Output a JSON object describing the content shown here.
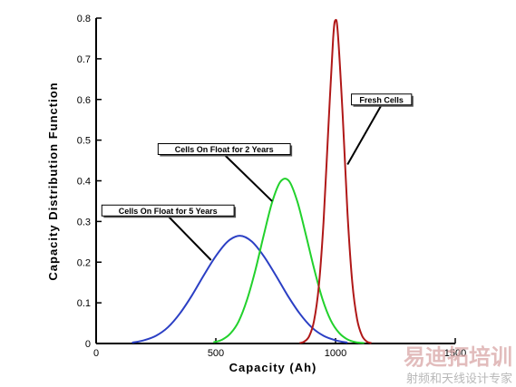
{
  "chart_data": {
    "type": "line",
    "xlabel": "Capacity (Ah)",
    "ylabel": "Capacity Distribution Function",
    "xlim": [
      0,
      1500
    ],
    "ylim": [
      0,
      0.8
    ],
    "xticks": [
      0,
      500,
      1000,
      1500
    ],
    "yticks": [
      0,
      0.1,
      0.2,
      0.3,
      0.4,
      0.5,
      0.6,
      0.7,
      0.8
    ],
    "xtick_labels": [
      "0",
      "500",
      "1000",
      "1500"
    ],
    "ytick_labels": [
      "0",
      "0.1",
      "0.2",
      "0.3",
      "0.4",
      "0.5",
      "0.6",
      "0.7",
      "0.8"
    ],
    "grid": false,
    "legend": "none",
    "series": [
      {
        "name": "Cells On Float for 5 Years",
        "color": "#2b3fc4",
        "x": [
          150,
          200,
          250,
          300,
          350,
          400,
          450,
          500,
          550,
          600,
          650,
          700,
          750,
          800,
          850,
          900,
          950,
          1000,
          1050
        ],
        "y": [
          0.002,
          0.008,
          0.019,
          0.04,
          0.074,
          0.118,
          0.168,
          0.215,
          0.251,
          0.265,
          0.251,
          0.215,
          0.168,
          0.118,
          0.074,
          0.04,
          0.019,
          0.008,
          0.002
        ]
      },
      {
        "name": "Cells On Float for 2 Years",
        "color": "#22d12c",
        "x": [
          490,
          525,
          560,
          595,
          630,
          665,
          700,
          735,
          770,
          805,
          840,
          875,
          910,
          945,
          980,
          1015,
          1050,
          1085,
          1120
        ],
        "y": [
          0.003,
          0.009,
          0.024,
          0.054,
          0.107,
          0.18,
          0.266,
          0.347,
          0.398,
          0.4,
          0.35,
          0.27,
          0.185,
          0.11,
          0.057,
          0.026,
          0.01,
          0.003,
          0.001
        ]
      },
      {
        "name": "Fresh Cells",
        "color": "#b01818",
        "x": [
          850,
          870,
          890,
          910,
          930,
          950,
          970,
          990,
          1000,
          1010,
          1030,
          1050,
          1070,
          1090,
          1110,
          1130,
          1150
        ],
        "y": [
          0.001,
          0.005,
          0.018,
          0.055,
          0.14,
          0.3,
          0.53,
          0.75,
          0.795,
          0.76,
          0.56,
          0.32,
          0.15,
          0.06,
          0.02,
          0.005,
          0.001
        ]
      }
    ],
    "annotations": [
      {
        "text": "Fresh Cells",
        "x": 1192,
        "y": 0.6,
        "series": 2,
        "arrow_to": [
          1050,
          0.44
        ]
      },
      {
        "text": "Cells On Float for 2 Years",
        "x": 535,
        "y": 0.478,
        "series": 1,
        "arrow_to": [
          735,
          0.35
        ]
      },
      {
        "text": "Cells On Float for 5 Years",
        "x": 300,
        "y": 0.327,
        "series": 0,
        "arrow_to": [
          480,
          0.205
        ]
      }
    ]
  },
  "watermark": {
    "line1": "易迪拓培训",
    "line2": "射频和天线设计专家"
  }
}
